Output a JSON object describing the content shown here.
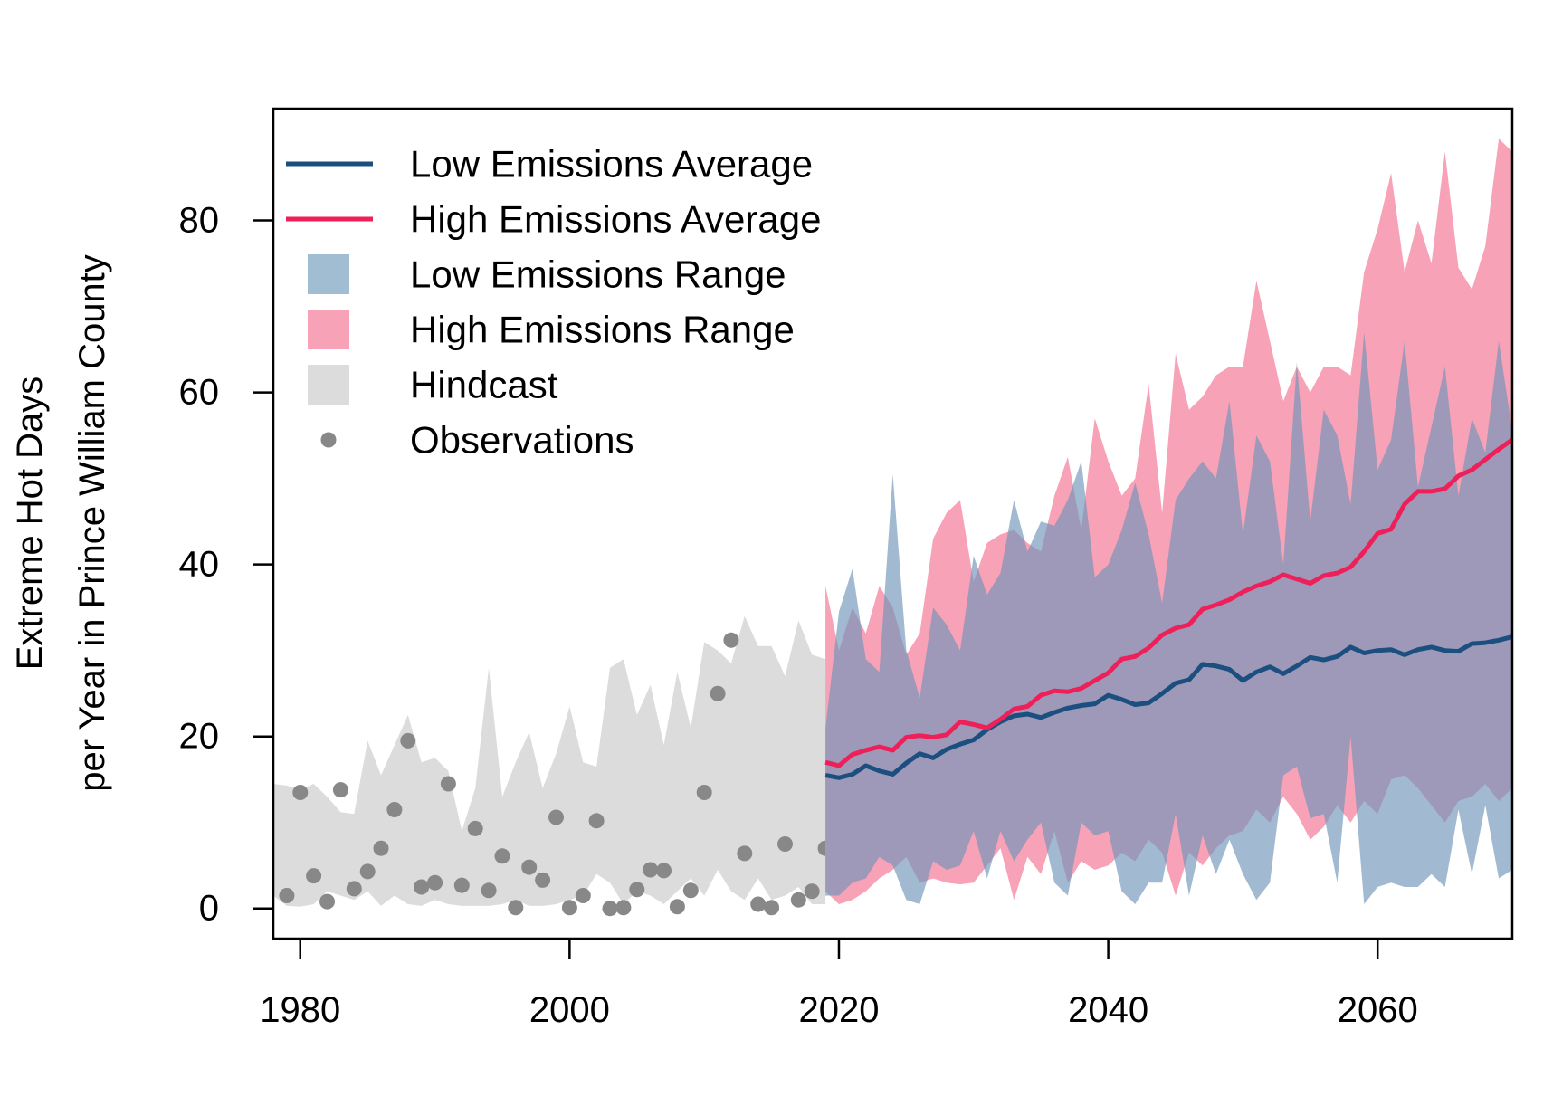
{
  "chart_data": {
    "type": "area",
    "xlabel": "",
    "ylabel": [
      "Extreme Hot Days",
      "per Year in Prince William County"
    ],
    "xlim": [
      1978,
      2070
    ],
    "ylim": [
      -3.5,
      93
    ],
    "xticks": [
      1980,
      2000,
      2020,
      2040,
      2060
    ],
    "yticks": [
      0,
      20,
      40,
      60,
      80
    ],
    "grid": false,
    "legend_position": "top-left",
    "legend": [
      {
        "label": "Low Emissions Average",
        "kind": "line",
        "color": "#1b4f7f"
      },
      {
        "label": "High Emissions Average",
        "kind": "line",
        "color": "#ef1f5a"
      },
      {
        "label": "Low Emissions Range",
        "kind": "fill",
        "color": "#a1bdd2"
      },
      {
        "label": "High Emissions Range",
        "kind": "fill",
        "color": "#f7a2b7"
      },
      {
        "label": "Hindcast",
        "kind": "fill",
        "color": "#dcdcdc"
      },
      {
        "label": "Observations",
        "kind": "point",
        "color": "#888888"
      }
    ],
    "hindcast": {
      "color": "#dcdcdc",
      "x": [
        1978,
        1979,
        1980,
        1981,
        1982,
        1983,
        1984,
        1985,
        1986,
        1987,
        1988,
        1989,
        1990,
        1991,
        1992,
        1993,
        1994,
        1995,
        1996,
        1997,
        1998,
        1999,
        2000,
        2001,
        2002,
        2003,
        2004,
        2005,
        2006,
        2007,
        2008,
        2009,
        2010,
        2011,
        2012,
        2013,
        2014,
        2015,
        2016,
        2017,
        2018,
        2019
      ],
      "upper": [
        14.5,
        14.3,
        13.8,
        14.5,
        13.0,
        11.2,
        11.0,
        19.5,
        15.5,
        19.0,
        22.5,
        17.0,
        17.5,
        16.0,
        9.0,
        14.0,
        28.0,
        13.0,
        17.0,
        20.5,
        14.0,
        18.0,
        23.5,
        17.0,
        16.5,
        28.0,
        29.0,
        22.5,
        26.0,
        19.0,
        27.5,
        21.0,
        31.0,
        30.0,
        28.5,
        34.0,
        30.5,
        30.5,
        27.0,
        33.5,
        29.5,
        29.0
      ],
      "lower": [
        1.5,
        0.3,
        0.2,
        0.5,
        2.0,
        1.5,
        1.0,
        2.0,
        0.3,
        1.5,
        0.5,
        0.3,
        1.0,
        0.5,
        0.3,
        0.3,
        0.3,
        0.5,
        1.0,
        0.3,
        0.3,
        0.5,
        1.0,
        1.5,
        4.0,
        3.0,
        0.5,
        2.0,
        1.5,
        0.5,
        2.0,
        3.5,
        1.5,
        4.5,
        2.0,
        1.0,
        3.5,
        1.0,
        1.5,
        2.5,
        0.5,
        0.5
      ]
    },
    "observations": {
      "color": "#888888",
      "x": [
        1979,
        1980,
        1981,
        1982,
        1983,
        1984,
        1985,
        1986,
        1987,
        1988,
        1989,
        1990,
        1991,
        1992,
        1993,
        1994,
        1995,
        1996,
        1997,
        1998,
        1999,
        2000,
        2001,
        2002,
        2003,
        2004,
        2005,
        2006,
        2007,
        2008,
        2009,
        2010,
        2011,
        2012,
        2013,
        2014,
        2015,
        2016,
        2017,
        2018,
        2019
      ],
      "y": [
        1.5,
        13.5,
        3.8,
        0.8,
        13.8,
        2.3,
        4.3,
        7.0,
        11.5,
        19.5,
        2.5,
        3.0,
        14.5,
        2.7,
        9.3,
        2.1,
        6.1,
        0.1,
        4.8,
        3.3,
        10.6,
        0.1,
        1.5,
        10.2,
        0.0,
        0.1,
        2.2,
        4.5,
        4.4,
        0.2,
        2.1,
        13.5,
        25.0,
        31.2,
        6.4,
        0.5,
        0.1,
        7.5,
        1.0,
        2.0,
        7.0
      ]
    },
    "projection_x": [
      2019,
      2020,
      2021,
      2022,
      2023,
      2024,
      2025,
      2026,
      2027,
      2028,
      2029,
      2030,
      2031,
      2032,
      2033,
      2034,
      2035,
      2036,
      2037,
      2038,
      2039,
      2040,
      2041,
      2042,
      2043,
      2044,
      2045,
      2046,
      2047,
      2048,
      2049,
      2050,
      2051,
      2052,
      2053,
      2054,
      2055,
      2056,
      2057,
      2058,
      2059,
      2060,
      2061,
      2062,
      2063,
      2064,
      2065,
      2066,
      2067,
      2068,
      2069,
      2070
    ],
    "series": [
      {
        "name": "High Emissions Range",
        "kind": "range",
        "color": "#f7a2b7",
        "upper": [
          37.5,
          30.0,
          35.0,
          32.0,
          37.5,
          35.0,
          29.5,
          32.0,
          43.0,
          46.0,
          47.5,
          38.0,
          42.5,
          43.5,
          44.0,
          42.5,
          41.5,
          48.0,
          52.5,
          44.0,
          57.0,
          52.0,
          48.0,
          50.0,
          61.0,
          46.0,
          64.5,
          58.0,
          59.5,
          62.0,
          63.0,
          63.0,
          73.0,
          66.0,
          59.0,
          63.0,
          60.0,
          63.0,
          63.0,
          62.0,
          74.0,
          79.0,
          85.5,
          74.0,
          80.0,
          75.0,
          88.0,
          74.5,
          72.0,
          77.0,
          89.5,
          88.0
        ],
        "lower": [
          2.0,
          0.5,
          1.0,
          2.0,
          3.5,
          4.5,
          6.0,
          3.0,
          3.5,
          3.0,
          2.8,
          3.0,
          5.0,
          7.0,
          1.0,
          6.0,
          4.0,
          9.0,
          3.0,
          5.5,
          4.5,
          5.0,
          6.5,
          5.5,
          8.0,
          6.5,
          1.5,
          6.5,
          5.0,
          7.0,
          8.5,
          9.0,
          11.5,
          10.0,
          13.0,
          11.0,
          8.0,
          9.5,
          12.0,
          10.0,
          12.5,
          11.0,
          15.0,
          15.5,
          14.0,
          12.0,
          10.0,
          12.5,
          13.0,
          14.5,
          12.5,
          14.0
        ]
      },
      {
        "name": "Low Emissions Range",
        "kind": "range",
        "color": "#6e95b8",
        "opacity": 0.65,
        "upper": [
          21.0,
          34.5,
          39.5,
          29.0,
          27.5,
          50.5,
          30.0,
          24.5,
          35.0,
          33.0,
          30.0,
          41.0,
          36.5,
          39.0,
          47.5,
          41.5,
          45.0,
          44.5,
          47.5,
          52.0,
          38.5,
          40.0,
          44.0,
          49.5,
          43.5,
          35.5,
          47.5,
          50.0,
          52.0,
          50.0,
          59.0,
          43.5,
          55.0,
          52.0,
          40.0,
          63.5,
          45.0,
          58.0,
          55.0,
          47.0,
          67.0,
          51.0,
          54.5,
          66.0,
          49.0,
          56.0,
          63.0,
          48.0,
          57.0,
          53.0,
          66.0,
          55.5
        ],
        "lower": [
          1.5,
          1.5,
          3.0,
          3.5,
          6.0,
          5.0,
          1.0,
          0.5,
          5.5,
          4.5,
          5.0,
          9.0,
          3.5,
          9.0,
          5.5,
          8.0,
          10.0,
          3.0,
          1.5,
          10.0,
          8.5,
          9.0,
          2.0,
          0.5,
          3.0,
          3.0,
          11.0,
          1.5,
          8.5,
          4.0,
          8.0,
          4.0,
          1.0,
          3.0,
          15.5,
          16.5,
          10.5,
          11.0,
          3.0,
          20.0,
          0.5,
          2.5,
          3.0,
          2.5,
          2.5,
          4.0,
          2.5,
          11.5,
          4.0,
          12.0,
          3.5,
          4.5
        ]
      },
      {
        "name": "Low Emissions Average",
        "kind": "line",
        "color": "#1b4f7f",
        "values": [
          15.5,
          15.2,
          15.6,
          16.6,
          16.0,
          15.6,
          16.9,
          18.0,
          17.5,
          18.5,
          19.1,
          19.6,
          20.8,
          21.7,
          22.4,
          22.6,
          22.2,
          22.8,
          23.3,
          23.6,
          23.8,
          24.8,
          24.3,
          23.7,
          23.9,
          25.0,
          26.2,
          26.6,
          28.4,
          28.2,
          27.8,
          26.5,
          27.5,
          28.1,
          27.3,
          28.2,
          29.2,
          28.9,
          29.3,
          30.4,
          29.7,
          30.0,
          30.1,
          29.5,
          30.1,
          30.4,
          30.0,
          29.9,
          30.8,
          30.9,
          31.2,
          31.6
        ]
      },
      {
        "name": "High Emissions Average",
        "kind": "line",
        "color": "#ef1f5a",
        "values": [
          17.0,
          16.6,
          17.9,
          18.4,
          18.8,
          18.4,
          19.9,
          20.1,
          19.9,
          20.2,
          21.7,
          21.4,
          21.0,
          22.0,
          23.2,
          23.5,
          24.8,
          25.3,
          25.2,
          25.6,
          26.5,
          27.4,
          29.0,
          29.3,
          30.3,
          31.8,
          32.6,
          33.0,
          34.8,
          35.3,
          35.9,
          36.8,
          37.5,
          38.0,
          38.8,
          38.3,
          37.8,
          38.7,
          39.0,
          39.7,
          41.5,
          43.6,
          44.1,
          47.0,
          48.5,
          48.5,
          48.8,
          50.3,
          51.0,
          52.2,
          53.4,
          54.5
        ]
      }
    ]
  }
}
